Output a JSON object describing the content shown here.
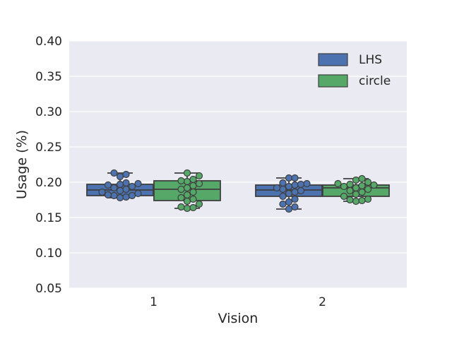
{
  "chart_data": {
    "type": "box",
    "xlabel": "Vision",
    "ylabel": "Usage (%)",
    "categories": [
      "1",
      "2"
    ],
    "ylim": [
      0.05,
      0.4
    ],
    "yticks": [
      "0.05",
      "0.10",
      "0.15",
      "0.20",
      "0.25",
      "0.30",
      "0.35",
      "0.40"
    ],
    "grid": true,
    "legend_position": "top-right",
    "series": [
      {
        "name": "LHS",
        "color": "#4c72b0",
        "boxes": [
          {
            "category": "1",
            "whisker_low": 0.178,
            "q1": 0.181,
            "median": 0.189,
            "q3": 0.197,
            "whisker_high": 0.213,
            "points": [
              0.213,
              0.211,
              0.208,
              0.199,
              0.198,
              0.197,
              0.196,
              0.194,
              0.192,
              0.19,
              0.188,
              0.186,
              0.184,
              0.182,
              0.181,
              0.181,
              0.179,
              0.178
            ]
          },
          {
            "category": "2",
            "whisker_low": 0.162,
            "q1": 0.18,
            "median": 0.189,
            "q3": 0.196,
            "whisker_high": 0.206,
            "points": [
              0.206,
              0.206,
              0.199,
              0.198,
              0.197,
              0.196,
              0.194,
              0.192,
              0.19,
              0.188,
              0.186,
              0.184,
              0.18,
              0.176,
              0.172,
              0.169,
              0.165,
              0.162
            ]
          }
        ]
      },
      {
        "name": "circle",
        "color": "#55a868",
        "boxes": [
          {
            "category": "1",
            "whisker_low": 0.163,
            "q1": 0.174,
            "median": 0.19,
            "q3": 0.202,
            "whisker_high": 0.213,
            "points": [
              0.213,
              0.209,
              0.204,
              0.202,
              0.201,
              0.198,
              0.195,
              0.192,
              0.19,
              0.186,
              0.182,
              0.178,
              0.176,
              0.173,
              0.169,
              0.165,
              0.164,
              0.163
            ]
          },
          {
            "category": "2",
            "whisker_low": 0.173,
            "q1": 0.18,
            "median": 0.192,
            "q3": 0.196,
            "whisker_high": 0.205,
            "points": [
              0.205,
              0.203,
              0.2,
              0.198,
              0.197,
              0.196,
              0.195,
              0.194,
              0.192,
              0.19,
              0.188,
              0.186,
              0.183,
              0.18,
              0.176,
              0.175,
              0.174,
              0.173
            ]
          }
        ]
      }
    ]
  }
}
